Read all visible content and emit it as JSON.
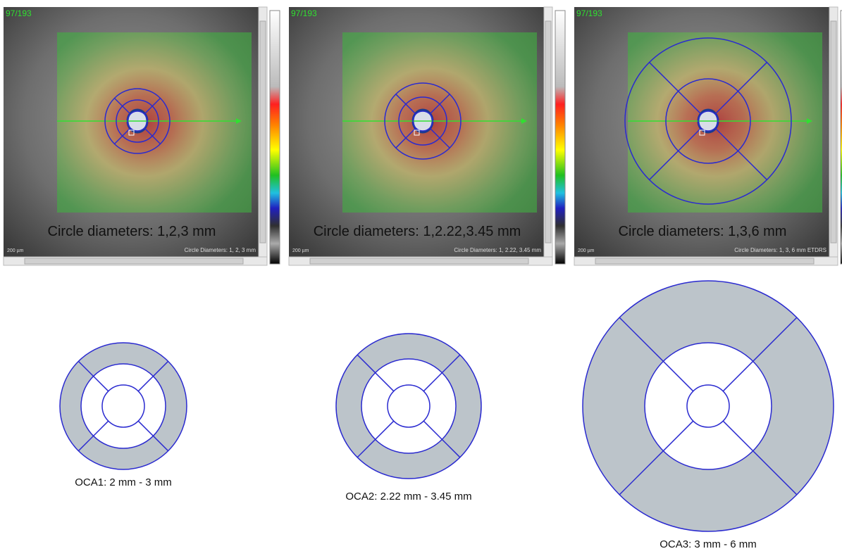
{
  "panels": [
    {
      "counter": "97/193",
      "overlay_caption": "Circle diameters: 1,2,3 mm",
      "scale_label": "200 µm",
      "info": "Circle Diameters: 1, 2, 3 mm"
    },
    {
      "counter": "97/193",
      "overlay_caption": "Circle diameters: 1,2.22,3.45 mm",
      "scale_label": "200 µm",
      "info": "Circle Diameters: 1, 2.22, 3.45 mm"
    },
    {
      "counter": "97/193",
      "overlay_caption": "Circle diameters: 1,3,6 mm",
      "scale_label": "200 µm",
      "info": "Circle Diameters: 1, 3, 6 mm ETDRS"
    }
  ],
  "diagrams": [
    {
      "caption": "OCA1: 2 mm - 3 mm"
    },
    {
      "caption": "OCA2: 2.22 mm - 3.45 mm"
    },
    {
      "caption": "OCA3: 3 mm - 6 mm"
    }
  ]
}
